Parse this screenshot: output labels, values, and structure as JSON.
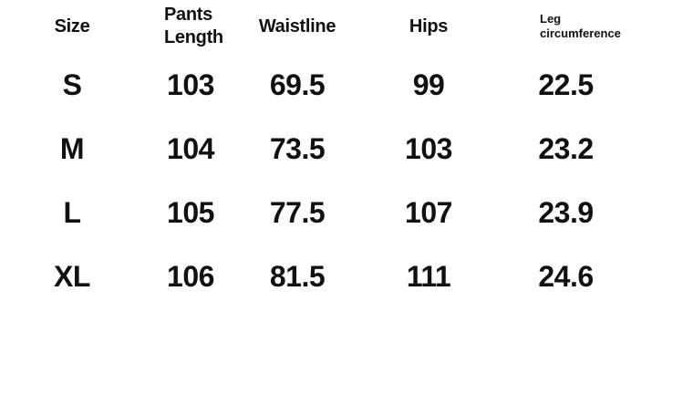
{
  "colors": {
    "background": "#ffffff",
    "text": "#111111"
  },
  "chart_data": {
    "type": "table",
    "columns": [
      "Size",
      "Pants Length",
      "Waistline",
      "Hips",
      "Leg circumference"
    ],
    "rows": [
      [
        "S",
        "103",
        "69.5",
        "99",
        "22.5"
      ],
      [
        "M",
        "104",
        "73.5",
        "103",
        "23.2"
      ],
      [
        "L",
        "105",
        "77.5",
        "107",
        "23.9"
      ],
      [
        "XL",
        "106",
        "81.5",
        "111",
        "24.6"
      ]
    ]
  }
}
